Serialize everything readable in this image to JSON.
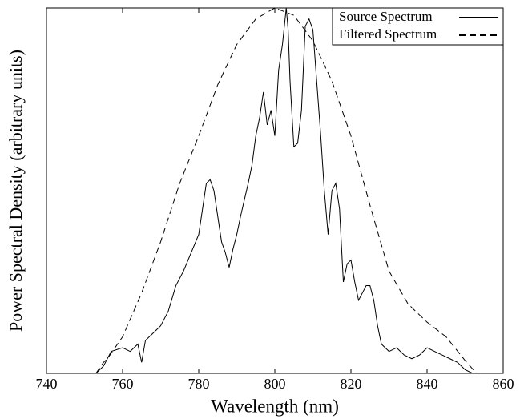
{
  "chart_data": {
    "type": "line",
    "xlabel": "Wavelength (nm)",
    "ylabel": "Power Spectral Density (arbitrary units)",
    "xlim": [
      740,
      860
    ],
    "xticks": [
      740,
      760,
      780,
      800,
      820,
      840,
      860
    ],
    "ylim": [
      0,
      1
    ],
    "yticks": [],
    "legend": "upper right",
    "series": [
      {
        "name": "Source Spectrum",
        "color": "#000000",
        "dash": "solid",
        "x": [
          753,
          755,
          757,
          760,
          762,
          764,
          765,
          766,
          768,
          770,
          772,
          774,
          776,
          778,
          780,
          782,
          783,
          784,
          786,
          787,
          788,
          789,
          790,
          791,
          793,
          794,
          795,
          796,
          797,
          798,
          799,
          800,
          801,
          802,
          803,
          803.5,
          804,
          805,
          806,
          807,
          808,
          809,
          810,
          811,
          812,
          813,
          814,
          815,
          816,
          817,
          818,
          819,
          820,
          821,
          822,
          823,
          824,
          825,
          826,
          827,
          828,
          830,
          832,
          834,
          836,
          838,
          840,
          842,
          844,
          846,
          848,
          850,
          852
        ],
        "values": [
          0,
          0.02,
          0.06,
          0.07,
          0.06,
          0.08,
          0.03,
          0.09,
          0.11,
          0.13,
          0.17,
          0.24,
          0.28,
          0.33,
          0.38,
          0.52,
          0.53,
          0.5,
          0.36,
          0.33,
          0.29,
          0.34,
          0.38,
          0.43,
          0.52,
          0.57,
          0.65,
          0.7,
          0.77,
          0.68,
          0.72,
          0.65,
          0.83,
          0.9,
          1.0,
          0.94,
          0.8,
          0.62,
          0.63,
          0.72,
          0.95,
          0.97,
          0.94,
          0.8,
          0.66,
          0.5,
          0.38,
          0.5,
          0.52,
          0.45,
          0.25,
          0.3,
          0.31,
          0.25,
          0.2,
          0.22,
          0.24,
          0.24,
          0.2,
          0.13,
          0.08,
          0.06,
          0.07,
          0.05,
          0.04,
          0.05,
          0.07,
          0.06,
          0.05,
          0.04,
          0.03,
          0.01,
          0
        ]
      },
      {
        "name": "Filtered Spectrum",
        "color": "#000000",
        "dash": "dashed",
        "x": [
          753,
          755,
          756,
          760,
          765,
          770,
          775,
          780,
          785,
          790,
          795,
          800,
          805,
          810,
          815,
          820,
          825,
          830,
          835,
          840,
          845,
          850,
          853
        ],
        "values": [
          0,
          0.03,
          0.04,
          0.1,
          0.22,
          0.36,
          0.52,
          0.65,
          0.79,
          0.9,
          0.97,
          1.0,
          0.98,
          0.91,
          0.8,
          0.65,
          0.46,
          0.28,
          0.19,
          0.14,
          0.1,
          0.035,
          0
        ]
      }
    ]
  }
}
